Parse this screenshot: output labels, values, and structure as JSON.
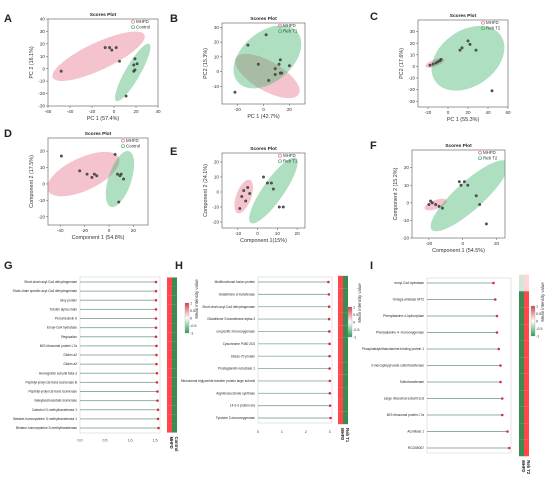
{
  "colors": {
    "mhfd": "#e8708a",
    "control": "#3fb36b"
  },
  "chart_data": [
    {
      "id": "A",
      "type": "scatter",
      "title": "Scores Plot",
      "xlabel": "PC 1 (57.4%)",
      "ylabel": "PC 2 (16.1%)",
      "xlim": [
        -60,
        40
      ],
      "ylim": [
        -30,
        40
      ],
      "xticks": [
        -60,
        -40,
        -20,
        0,
        20,
        40
      ],
      "yticks": [
        -30,
        -20,
        -10,
        0,
        10,
        20,
        30,
        40
      ],
      "legend": [
        "MHFD",
        "Control"
      ],
      "series": [
        {
          "name": "MHFD",
          "color_key": "mhfd",
          "points": [
            [
              -48,
              -2
            ],
            [
              -8,
              17
            ],
            [
              -4,
              17
            ],
            [
              -2,
              15
            ],
            [
              2,
              17
            ],
            [
              5,
              6
            ]
          ],
          "ellipse": {
            "cx": -14,
            "cy": 10,
            "rx": 46,
            "ry": 11,
            "angle": -25
          }
        },
        {
          "name": "Control",
          "color_key": "control",
          "points": [
            [
              19,
              8
            ],
            [
              21,
              4
            ],
            [
              18,
              3
            ],
            [
              19,
              -1
            ],
            [
              18,
              -2
            ],
            [
              11,
              -22
            ]
          ],
          "ellipse": {
            "cx": 17,
            "cy": -3,
            "rx": 30,
            "ry": 6,
            "angle": -60
          }
        }
      ]
    },
    {
      "id": "B",
      "type": "scatter",
      "title": "Scores Plot",
      "xlabel": "PC 1 (42.7%)",
      "ylabel": "PC2 (15.3%)",
      "xlim": [
        -32,
        32
      ],
      "ylim": [
        -22,
        33
      ],
      "xticks": [
        -20,
        0,
        20
      ],
      "yticks": [
        -10,
        0,
        10,
        20,
        30
      ],
      "legend": [
        "MHFD",
        "Reb T1"
      ],
      "series": [
        {
          "name": "MHFD",
          "color_key": "mhfd",
          "points": [
            [
              -22,
              -14
            ],
            [
              4,
              -6
            ],
            [
              9,
              -2
            ],
            [
              12,
              5
            ],
            [
              13,
              -1
            ],
            [
              20,
              4
            ]
          ],
          "ellipse": {
            "cx": 3,
            "cy": -3,
            "rx": 28,
            "ry": 10,
            "angle": 30
          }
        },
        {
          "name": "Reb T1",
          "color_key": "control",
          "points": [
            [
              -4,
              5
            ],
            [
              2,
              25
            ],
            [
              -12,
              18
            ],
            [
              13,
              8
            ],
            [
              9,
              2
            ],
            [
              14,
              -1
            ]
          ],
          "ellipse": {
            "cx": 3,
            "cy": 10,
            "rx": 30,
            "ry": 17,
            "angle": -40
          }
        }
      ]
    },
    {
      "id": "C",
      "type": "scatter",
      "title": "Scores Plot",
      "xlabel": "PC 1 (55.3%)",
      "ylabel": "PC2 (17.6%)",
      "xlim": [
        -30,
        60
      ],
      "ylim": [
        -35,
        40
      ],
      "xticks": [
        -20,
        0,
        20,
        40,
        60
      ],
      "yticks": [
        -30,
        -20,
        -10,
        0,
        10,
        20,
        30
      ],
      "legend": [
        "MHFD",
        "Reb T2"
      ],
      "series": [
        {
          "name": "MHFD",
          "color_key": "mhfd",
          "points": [
            [
              -18,
              1
            ],
            [
              -15,
              2
            ],
            [
              -12,
              3
            ],
            [
              -10,
              4
            ],
            [
              -8,
              5
            ],
            [
              -7,
              6
            ]
          ],
          "ellipse": {
            "cx": -13,
            "cy": 3,
            "rx": 10,
            "ry": 3,
            "angle": -20
          }
        },
        {
          "name": "Reb T2",
          "color_key": "control",
          "points": [
            [
              12,
              14
            ],
            [
              14,
              16
            ],
            [
              22,
              19
            ],
            [
              20,
              22
            ],
            [
              28,
              14
            ],
            [
              44,
              -21
            ]
          ],
          "ellipse": {
            "cx": 20,
            "cy": 7,
            "rx": 40,
            "ry": 24,
            "angle": -35
          }
        }
      ]
    },
    {
      "id": "D",
      "type": "scatter",
      "title": "Scores Plot",
      "xlabel": "Component 1 (54.8%)",
      "ylabel": "Component 2 (17.5%)",
      "xlim": [
        -50,
        32
      ],
      "ylim": [
        -25,
        28
      ],
      "xticks": [
        -40,
        -20,
        0,
        20
      ],
      "yticks": [
        -20,
        -10,
        0,
        10,
        20
      ],
      "legend": [
        "MHFD",
        "Control"
      ],
      "series": [
        {
          "name": "MHFD",
          "color_key": "mhfd",
          "points": [
            [
              -39,
              17
            ],
            [
              -24,
              8
            ],
            [
              -18,
              6
            ],
            [
              -14,
              4
            ],
            [
              -12,
              6
            ],
            [
              -10,
              5
            ]
          ],
          "ellipse": {
            "cx": -21,
            "cy": 6,
            "rx": 32,
            "ry": 10,
            "angle": -25
          }
        },
        {
          "name": "Control",
          "color_key": "control",
          "points": [
            [
              5,
              18
            ],
            [
              7,
              6
            ],
            [
              9,
              5
            ],
            [
              10,
              6
            ],
            [
              12,
              3
            ],
            [
              8,
              -11
            ]
          ],
          "ellipse": {
            "cx": 9,
            "cy": 3,
            "rx": 24,
            "ry": 7,
            "angle": -72
          }
        }
      ]
    },
    {
      "id": "E",
      "type": "scatter",
      "title": "Scores Plot",
      "xlabel": "Component 1(15%)",
      "ylabel": "Component 2 (24.1%)",
      "xlim": [
        -18,
        24
      ],
      "ylim": [
        -24,
        26
      ],
      "xticks": [
        -10,
        0,
        10,
        20
      ],
      "yticks": [
        -20,
        -10,
        0,
        10,
        20
      ],
      "legend": [
        "MHFD",
        "Reb T1"
      ],
      "series": [
        {
          "name": "MHFD",
          "color_key": "mhfd",
          "points": [
            [
              -9,
              -11
            ],
            [
              -8,
              -3
            ],
            [
              -7,
              1
            ],
            [
              -5,
              3
            ],
            [
              -6,
              -6
            ],
            [
              -4,
              -1
            ]
          ],
          "ellipse": {
            "cx": -7,
            "cy": -3,
            "rx": 9,
            "ry": 5,
            "angle": -70
          }
        },
        {
          "name": "Reb T1",
          "color_key": "control",
          "points": [
            [
              3,
              10
            ],
            [
              5,
              6
            ],
            [
              7,
              6
            ],
            [
              8,
              2
            ],
            [
              11,
              -10
            ],
            [
              13,
              -10
            ]
          ],
          "ellipse": {
            "cx": 8,
            "cy": 1,
            "rx": 20,
            "ry": 7,
            "angle": -55
          }
        }
      ]
    },
    {
      "id": "F",
      "type": "scatter",
      "title": "Scores Plot",
      "xlabel": "Component 1 (54.5%)",
      "ylabel": "Component 2 (15.2%)",
      "xlim": [
        -30,
        25
      ],
      "ylim": [
        -20,
        30
      ],
      "xticks": [
        -20,
        0,
        20
      ],
      "yticks": [
        -20,
        -10,
        0,
        10,
        20
      ],
      "legend": [
        "MHFD",
        "Reb T2"
      ],
      "series": [
        {
          "name": "MHFD",
          "color_key": "mhfd",
          "points": [
            [
              -20,
              -1
            ],
            [
              -18,
              0
            ],
            [
              -16,
              -1
            ],
            [
              -14,
              -2
            ],
            [
              -12,
              -3
            ],
            [
              -19,
              1
            ]
          ],
          "ellipse": {
            "cx": -16,
            "cy": -1,
            "rx": 7,
            "ry": 2.5,
            "angle": -20
          }
        },
        {
          "name": "Reb T2",
          "color_key": "control",
          "points": [
            [
              -1,
              10
            ],
            [
              1,
              12
            ],
            [
              3,
              10
            ],
            [
              -2,
              12
            ],
            [
              8,
              4
            ],
            [
              10,
              -1
            ],
            [
              14,
              -12
            ]
          ],
          "ellipse": {
            "cx": 4,
            "cy": 4,
            "rx": 30,
            "ry": 8,
            "angle": -42
          }
        }
      ]
    }
  ],
  "vip_panels": [
    {
      "id": "G",
      "group_label": "MHFD",
      "group2_label": "Control",
      "cb_title": "Mean intensity value",
      "xlim": [
        0,
        1.6
      ],
      "xticks": [
        "0.0",
        "0.5",
        "1.0",
        "1.5"
      ],
      "cb_ticks": [
        "1",
        "0.5",
        "0",
        "-0.5",
        "-1"
      ],
      "features": [
        "Short-chain acyl-CoA dehydrogenase",
        "Short-chain specific acyl-CoA dehydrogenase",
        "Glxy protein",
        "Tubulin alpha chain",
        "Peroxiredoxin 6",
        "Enoyl-CoA hydratase",
        "Regucalcin",
        "60S ribosomal protein L7a",
        "Globin a2",
        "Globin a2",
        "Hemoglobin subunit beta-2",
        "Peptidyl-prolyl cis-trans isomerase B",
        "Peptidyl-prolyl cis-trans isomerase",
        "maleylacetoacetate isomerase",
        "Catechol O-methyltransferase 1",
        "Betaine-homocysteine S-methyltransferase 1",
        "Betaine-homocysteine S-methyltransferase"
      ],
      "values": [
        1.52,
        1.52,
        1.52,
        1.52,
        1.52,
        1.52,
        1.52,
        1.53,
        1.53,
        1.53,
        1.54,
        1.54,
        1.55,
        1.55,
        1.56,
        1.56,
        1.57
      ],
      "heat": [
        [
          0.9,
          -0.9
        ],
        [
          0.9,
          -0.9
        ],
        [
          0.9,
          -0.9
        ],
        [
          0.9,
          -0.9
        ],
        [
          0.9,
          -0.9
        ],
        [
          0.9,
          -0.9
        ],
        [
          0.9,
          -0.9
        ],
        [
          0.9,
          -0.9
        ],
        [
          0.9,
          -0.9
        ],
        [
          0.9,
          -0.9
        ],
        [
          0.9,
          -0.9
        ],
        [
          0.9,
          -0.9
        ],
        [
          0.9,
          -0.9
        ],
        [
          0.9,
          -0.9
        ],
        [
          0.9,
          -0.9
        ],
        [
          0.9,
          -0.9
        ],
        [
          0.9,
          -0.9
        ]
      ]
    },
    {
      "id": "H",
      "group_label": "MHFD",
      "group2_label": "Reb T1",
      "cb_title": "Mean intensity value",
      "xlim": [
        0,
        3.1
      ],
      "xticks": [
        "0",
        "1",
        "2",
        "3"
      ],
      "cb_ticks": [
        "1",
        "0.5",
        "0",
        "-0.5",
        "-1"
      ],
      "features": [
        "Multifunctional fusion protein",
        "Glutathione S-transferase",
        "Short-chain acyl-CoA dehydrogenase",
        "Glutathione S-transferase alpha-3",
        "uncpecific monooxygenase",
        "Cytochrome P450 2C6",
        "Stress-70 protein",
        "Prostaglandin reductase 1",
        "Microsomal triglyceride transfer protein large subunit",
        "Argininosuccinate synthase",
        "14-3-3 protein eta",
        "Tyrosine 3-monooxygenase"
      ],
      "values": [
        2.95,
        2.97,
        2.98,
        2.98,
        2.99,
        3.0,
        3.0,
        3.0,
        3.01,
        3.01,
        3.02,
        3.04
      ],
      "heat": [
        [
          0.9,
          -0.9
        ],
        [
          0.9,
          -0.9
        ],
        [
          0.9,
          -0.9
        ],
        [
          0.9,
          -0.9
        ],
        [
          0.9,
          -0.9
        ],
        [
          0.9,
          -0.9
        ],
        [
          0.9,
          -0.9
        ],
        [
          0.9,
          -0.9
        ],
        [
          0.9,
          -0.9
        ],
        [
          0.9,
          -0.9
        ],
        [
          0.9,
          -0.9
        ],
        [
          0.9,
          -0.9
        ]
      ]
    },
    {
      "id": "I",
      "group_label": "MHFD",
      "group2_label": "Reb T2",
      "cb_title": "Mean intensity value",
      "xlim": [
        0,
        2.4
      ],
      "xticks": [],
      "cb_ticks": [
        "1",
        "0.5",
        "0",
        "-0.5",
        "-1"
      ],
      "features": [
        "enoyl-CoA hydratase",
        "Omega-amidase NIT2",
        "Phenylalanine-4-hydroxylase",
        "Phenylalanine 4- monooxygenase",
        "Phosphatidylethanolamine-binding protein 1",
        "3-mercaptopyruvate sulfurtransferase",
        "Sulfurtransferase",
        "Large ribosomal subunit eL8",
        "60S ribosomal protein L7a",
        "Aconitase 1",
        "RCG55067"
      ],
      "values": [
        1.9,
        1.95,
        2.0,
        2.0,
        2.05,
        2.1,
        2.1,
        2.15,
        2.15,
        2.3,
        2.35
      ],
      "heat": [
        [
          -0.2,
          0.2
        ],
        [
          -0.9,
          0.9
        ],
        [
          -0.9,
          0.9
        ],
        [
          -0.9,
          0.9
        ],
        [
          -0.9,
          0.9
        ],
        [
          -0.9,
          0.9
        ],
        [
          -0.9,
          0.9
        ],
        [
          -0.9,
          0.9
        ],
        [
          -0.9,
          0.9
        ],
        [
          -0.9,
          0.9
        ],
        [
          -0.9,
          0.9
        ]
      ]
    }
  ]
}
